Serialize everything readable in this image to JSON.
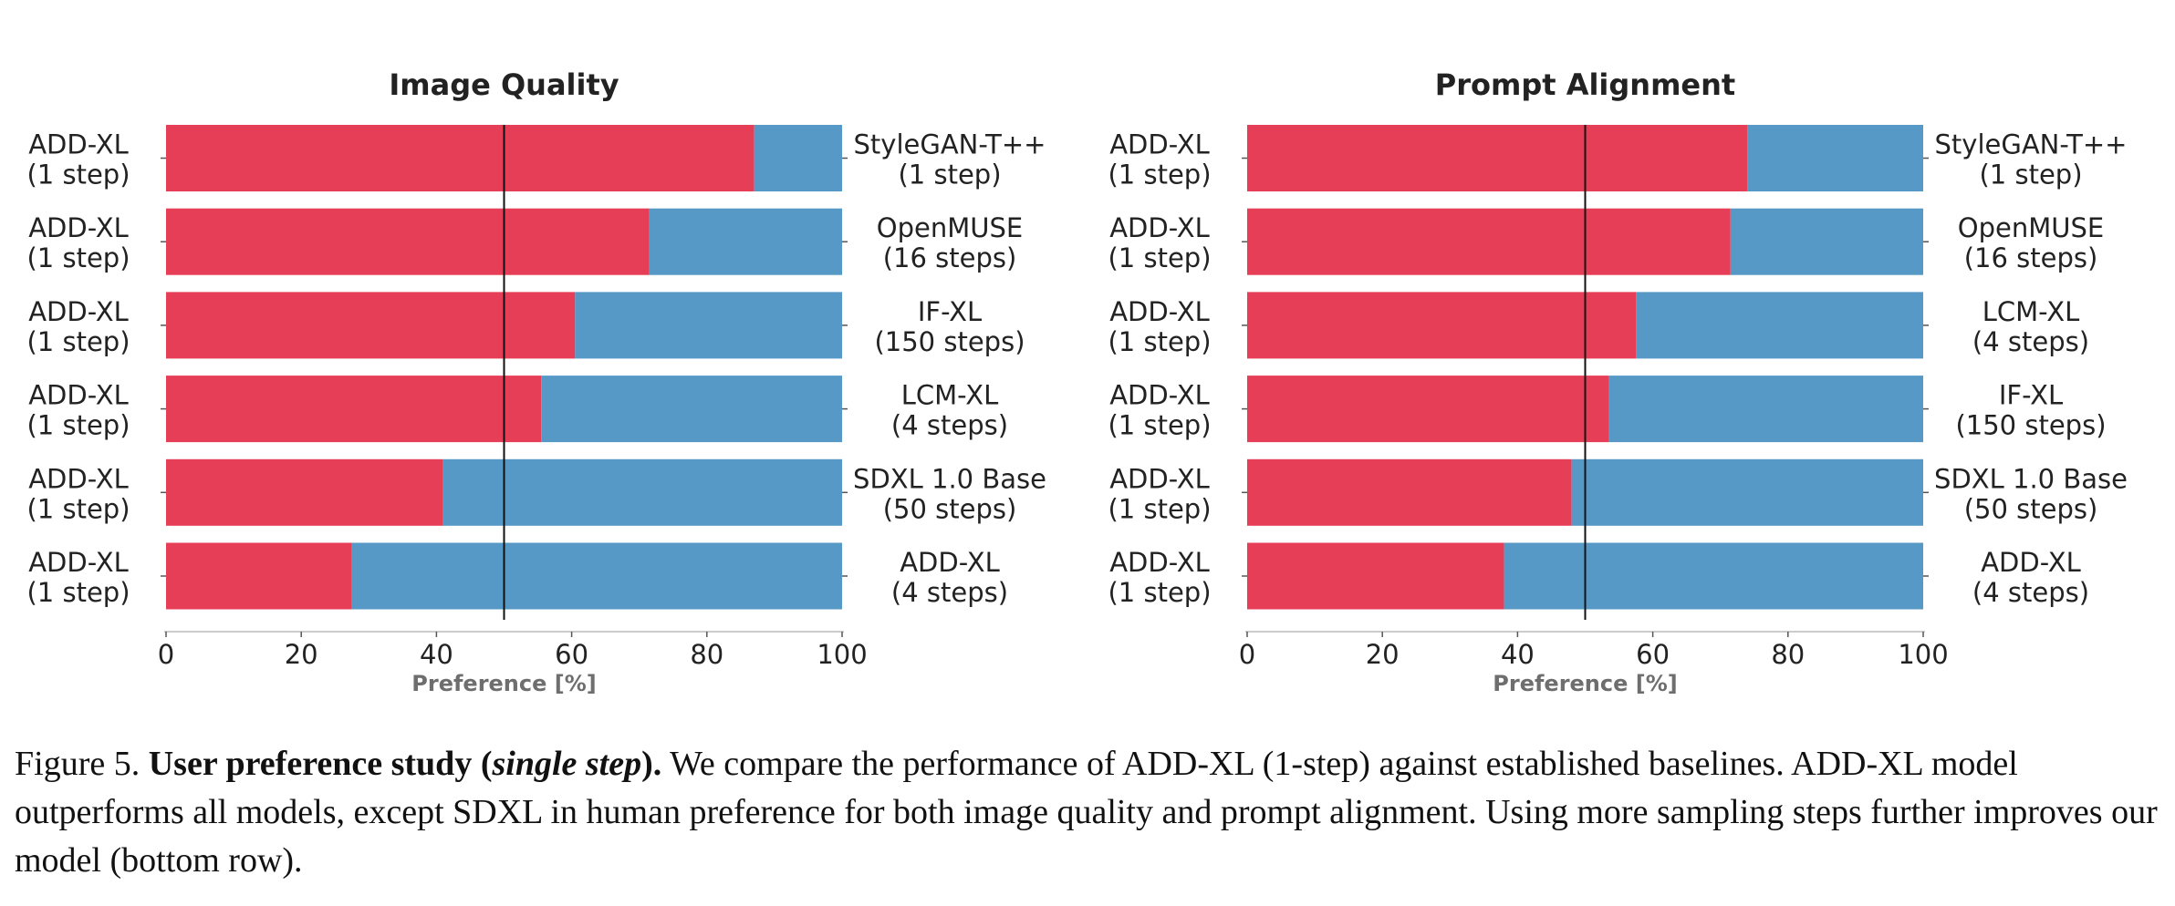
{
  "chart_data": [
    {
      "type": "bar",
      "orientation": "horizontal-stacked",
      "title": "Image Quality",
      "xlabel": "Preference [%]",
      "xlim": [
        0,
        100
      ],
      "xticks": [
        "0",
        "20",
        "40",
        "60",
        "80",
        "100"
      ],
      "reference_line": 50,
      "left_labels": [
        [
          "ADD-XL",
          "(1 step)"
        ],
        [
          "ADD-XL",
          "(1 step)"
        ],
        [
          "ADD-XL",
          "(1 step)"
        ],
        [
          "ADD-XL",
          "(1 step)"
        ],
        [
          "ADD-XL",
          "(1 step)"
        ],
        [
          "ADD-XL",
          "(1 step)"
        ]
      ],
      "right_labels": [
        [
          "StyleGAN-T++",
          "(1 step)"
        ],
        [
          "OpenMUSE",
          "(16 steps)"
        ],
        [
          "IF-XL",
          "(150 steps)"
        ],
        [
          "LCM-XL",
          "(4 steps)"
        ],
        [
          "SDXL 1.0 Base",
          "(50 steps)"
        ],
        [
          "ADD-XL",
          "(4 steps)"
        ]
      ],
      "values": [
        87,
        71.5,
        60.5,
        55.5,
        41,
        27.5
      ],
      "colors": {
        "left": "#e63e56",
        "right": "#5699c6"
      }
    },
    {
      "type": "bar",
      "orientation": "horizontal-stacked",
      "title": "Prompt Alignment",
      "xlabel": "Preference [%]",
      "xlim": [
        0,
        100
      ],
      "xticks": [
        "0",
        "20",
        "40",
        "60",
        "80",
        "100"
      ],
      "reference_line": 50,
      "left_labels": [
        [
          "ADD-XL",
          "(1 step)"
        ],
        [
          "ADD-XL",
          "(1 step)"
        ],
        [
          "ADD-XL",
          "(1 step)"
        ],
        [
          "ADD-XL",
          "(1 step)"
        ],
        [
          "ADD-XL",
          "(1 step)"
        ],
        [
          "ADD-XL",
          "(1 step)"
        ]
      ],
      "right_labels": [
        [
          "StyleGAN-T++",
          "(1 step)"
        ],
        [
          "OpenMUSE",
          "(16 steps)"
        ],
        [
          "LCM-XL",
          "(4 steps)"
        ],
        [
          "IF-XL",
          "(150 steps)"
        ],
        [
          "SDXL 1.0 Base",
          "(50 steps)"
        ],
        [
          "ADD-XL",
          "(4 steps)"
        ]
      ],
      "values": [
        74,
        71.5,
        57.5,
        53.5,
        48,
        38
      ],
      "colors": {
        "left": "#e63e56",
        "right": "#5699c6"
      }
    }
  ],
  "caption": {
    "prefix": "Figure 5. ",
    "bold_1": "User preference study (",
    "bold_italic": "single step",
    "bold_2": ").",
    "text": " We compare the performance of ADD-XL (1-step) against established baselines. ADD-XL model outperforms all models, except SDXL in human preference for both image quality and prompt alignment. Using more sampling steps further improves our model (bottom row)."
  }
}
